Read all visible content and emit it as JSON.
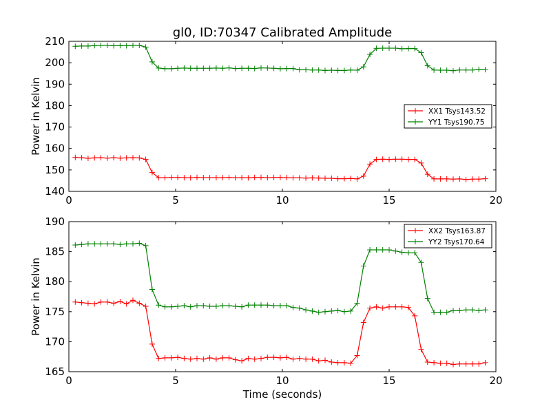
{
  "figure": {
    "title": "gl0, ID:70347 Calibrated Amplitude",
    "xlabel": "Time (seconds)"
  },
  "chart_data": [
    {
      "type": "line",
      "title": "gl0, ID:70347 Calibrated Amplitude",
      "xlabel": "",
      "ylabel": "Power in Kelvin",
      "xlim": [
        0,
        20
      ],
      "ylim": [
        140,
        210
      ],
      "xticks": [
        0,
        5,
        10,
        15,
        20
      ],
      "yticks": [
        140,
        150,
        160,
        170,
        180,
        190,
        200,
        210
      ],
      "grid": false,
      "legend_position": "right",
      "x": [
        0.3,
        0.6,
        0.9,
        1.2,
        1.5,
        1.8,
        2.1,
        2.4,
        2.7,
        3.0,
        3.3,
        3.6,
        3.9,
        4.2,
        4.5,
        4.8,
        5.1,
        5.4,
        5.7,
        6.0,
        6.3,
        6.6,
        6.9,
        7.2,
        7.5,
        7.8,
        8.1,
        8.4,
        8.7,
        9.0,
        9.3,
        9.6,
        9.9,
        10.2,
        10.5,
        10.8,
        11.1,
        11.4,
        11.7,
        12.0,
        12.3,
        12.6,
        12.9,
        13.2,
        13.5,
        13.8,
        14.1,
        14.4,
        14.7,
        15.0,
        15.3,
        15.6,
        15.9,
        16.2,
        16.5,
        16.8,
        17.1,
        17.4,
        17.7,
        18.0,
        18.3,
        18.6,
        18.9,
        19.2,
        19.5
      ],
      "series": [
        {
          "name": "XX1 Tsys143.52",
          "color": "#ff0000",
          "values": [
            155.8,
            155.7,
            155.4,
            155.6,
            155.7,
            155.5,
            155.7,
            155.5,
            155.6,
            155.7,
            155.6,
            154.9,
            148.8,
            146.4,
            146.3,
            146.5,
            146.5,
            146.4,
            146.3,
            146.5,
            146.4,
            146.4,
            146.4,
            146.4,
            146.5,
            146.3,
            146.4,
            146.3,
            146.5,
            146.5,
            146.4,
            146.5,
            146.5,
            146.4,
            146.3,
            146.3,
            146.2,
            146.3,
            146.2,
            146.1,
            146.1,
            145.9,
            145.9,
            146.0,
            145.8,
            147.1,
            152.7,
            154.9,
            155.0,
            154.9,
            155.0,
            155.0,
            154.9,
            154.9,
            153.2,
            148.0,
            145.8,
            145.8,
            145.8,
            145.7,
            145.8,
            145.5,
            145.7,
            145.7,
            145.9
          ]
        },
        {
          "name": "YY1 Tsys190.75",
          "color": "#008000",
          "values": [
            207.7,
            207.8,
            207.8,
            208.0,
            208.1,
            208.1,
            207.9,
            208.0,
            207.9,
            208.1,
            208.1,
            207.3,
            200.4,
            197.5,
            197.2,
            197.2,
            197.4,
            197.5,
            197.4,
            197.4,
            197.4,
            197.4,
            197.5,
            197.4,
            197.6,
            197.3,
            197.4,
            197.4,
            197.3,
            197.6,
            197.5,
            197.4,
            197.2,
            197.3,
            197.3,
            196.7,
            196.7,
            196.6,
            196.6,
            196.4,
            196.5,
            196.4,
            196.4,
            196.6,
            196.5,
            198.1,
            203.9,
            206.7,
            206.8,
            206.8,
            206.8,
            206.5,
            206.6,
            206.6,
            204.7,
            198.6,
            196.6,
            196.5,
            196.5,
            196.3,
            196.6,
            196.6,
            196.6,
            196.9,
            196.8
          ]
        }
      ]
    },
    {
      "type": "line",
      "title": "",
      "xlabel": "Time (seconds)",
      "ylabel": "Power in Kelvin",
      "xlim": [
        0,
        20
      ],
      "ylim": [
        165,
        190
      ],
      "xticks": [
        0,
        5,
        10,
        15,
        20
      ],
      "yticks": [
        165,
        170,
        175,
        180,
        185,
        190
      ],
      "grid": false,
      "legend_position": "top-right",
      "x": [
        0.3,
        0.6,
        0.9,
        1.2,
        1.5,
        1.8,
        2.1,
        2.4,
        2.7,
        3.0,
        3.3,
        3.6,
        3.9,
        4.2,
        4.5,
        4.8,
        5.1,
        5.4,
        5.7,
        6.0,
        6.3,
        6.6,
        6.9,
        7.2,
        7.5,
        7.8,
        8.1,
        8.4,
        8.7,
        9.0,
        9.3,
        9.6,
        9.9,
        10.2,
        10.5,
        10.8,
        11.1,
        11.4,
        11.7,
        12.0,
        12.3,
        12.6,
        12.9,
        13.2,
        13.5,
        13.8,
        14.1,
        14.4,
        14.7,
        15.0,
        15.3,
        15.6,
        15.9,
        16.2,
        16.5,
        16.8,
        17.1,
        17.4,
        17.7,
        18.0,
        18.3,
        18.6,
        18.9,
        19.2,
        19.5
      ],
      "series": [
        {
          "name": "XX2 Tsys163.87",
          "color": "#ff0000",
          "values": [
            176.6,
            176.5,
            176.4,
            176.3,
            176.6,
            176.6,
            176.4,
            176.7,
            176.3,
            176.9,
            176.4,
            175.9,
            169.6,
            167.2,
            167.3,
            167.3,
            167.4,
            167.2,
            167.1,
            167.2,
            167.1,
            167.3,
            167.1,
            167.3,
            167.3,
            167.0,
            166.8,
            167.2,
            167.1,
            167.2,
            167.4,
            167.4,
            167.3,
            167.4,
            167.1,
            167.2,
            167.1,
            167.1,
            166.8,
            166.9,
            166.6,
            166.5,
            166.5,
            166.4,
            167.7,
            173.2,
            175.6,
            175.8,
            175.6,
            175.8,
            175.8,
            175.8,
            175.7,
            174.3,
            168.7,
            166.6,
            166.5,
            166.4,
            166.4,
            166.2,
            166.3,
            166.3,
            166.3,
            166.3,
            166.5
          ]
        },
        {
          "name": "YY2 Tsys170.64",
          "color": "#008000",
          "values": [
            186.1,
            186.2,
            186.3,
            186.3,
            186.3,
            186.3,
            186.3,
            186.2,
            186.3,
            186.3,
            186.4,
            186.0,
            178.7,
            176.1,
            175.8,
            175.8,
            175.9,
            176.0,
            175.8,
            176.0,
            176.0,
            175.9,
            175.9,
            176.0,
            176.0,
            175.9,
            175.8,
            176.1,
            176.1,
            176.1,
            176.1,
            176.0,
            176.0,
            176.0,
            175.7,
            175.6,
            175.3,
            175.1,
            174.9,
            175.0,
            175.1,
            175.2,
            175.0,
            175.1,
            176.4,
            182.6,
            185.3,
            185.3,
            185.3,
            185.3,
            185.1,
            184.9,
            184.8,
            184.8,
            183.2,
            177.2,
            174.9,
            174.9,
            174.9,
            175.2,
            175.2,
            175.3,
            175.3,
            175.2,
            175.3
          ]
        }
      ]
    }
  ]
}
